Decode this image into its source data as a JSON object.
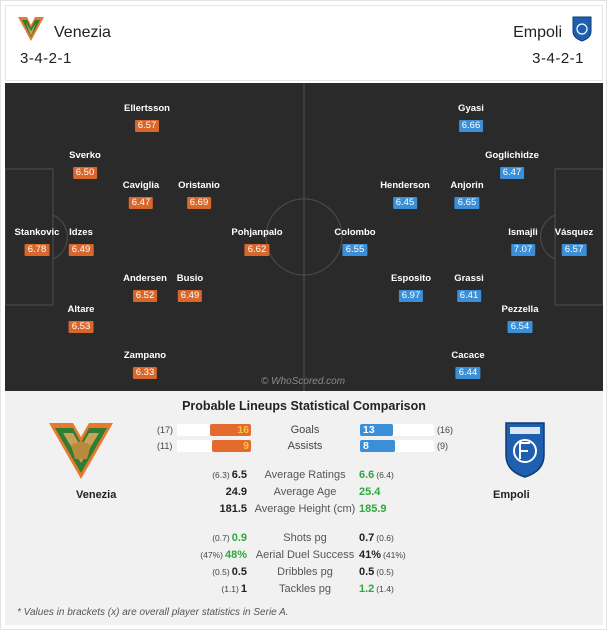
{
  "header": {
    "home": {
      "name": "Venezia",
      "formation": "3-4-2-1"
    },
    "away": {
      "name": "Empoli",
      "formation": "3-4-2-1"
    }
  },
  "colors": {
    "home_rating": "#d9662b",
    "away_rating": "#3a8fd6",
    "pitch": "#2a2a2a",
    "better": "#2eaa3c"
  },
  "pitch": {
    "watermark": "© WhoScored.com",
    "home_players": [
      {
        "name": "Ellertsson",
        "rating": "6.57"
      },
      {
        "name": "Sverko",
        "rating": "6.50"
      },
      {
        "name": "Caviglia",
        "rating": "6.47"
      },
      {
        "name": "Oristanio",
        "rating": "6.69"
      },
      {
        "name": "Stankovic",
        "rating": "6.78"
      },
      {
        "name": "Idzes",
        "rating": "6.49"
      },
      {
        "name": "Pohjanpalo",
        "rating": "6.62"
      },
      {
        "name": "Andersen",
        "rating": "6.52"
      },
      {
        "name": "Busio",
        "rating": "6.49"
      },
      {
        "name": "Altare",
        "rating": "6.53"
      },
      {
        "name": "Zampano",
        "rating": "6.33"
      }
    ],
    "away_players": [
      {
        "name": "Gyasi",
        "rating": "6.66"
      },
      {
        "name": "Goglichidze",
        "rating": "6.47"
      },
      {
        "name": "Henderson",
        "rating": "6.45"
      },
      {
        "name": "Anjorin",
        "rating": "6.65"
      },
      {
        "name": "Colombo",
        "rating": "6.55"
      },
      {
        "name": "Ismajli",
        "rating": "7.07"
      },
      {
        "name": "Vásquez",
        "rating": "6.57"
      },
      {
        "name": "Esposito",
        "rating": "6.97"
      },
      {
        "name": "Grassi",
        "rating": "6.41"
      },
      {
        "name": "Pezzella",
        "rating": "6.54"
      },
      {
        "name": "Cacace",
        "rating": "6.44"
      }
    ]
  },
  "comparison": {
    "title": "Probable Lineups Statistical Comparison",
    "home_name": "Venezia",
    "away_name": "Empoli",
    "goals": {
      "label": "Goals",
      "home": "16",
      "home_overall": "(17)",
      "away": "13",
      "away_overall": "(16)",
      "home_frac": 0.55,
      "away_frac": 0.45
    },
    "assists": {
      "label": "Assists",
      "home": "9",
      "home_overall": "(11)",
      "away": "8",
      "away_overall": "(9)",
      "home_frac": 0.53,
      "away_frac": 0.47
    },
    "stats": [
      {
        "label": "Average Ratings",
        "home": "6.5",
        "home_overall": "(6.3)",
        "away": "6.6",
        "away_overall": "(6.4)",
        "better": "away"
      },
      {
        "label": "Average Age",
        "home": "24.9",
        "home_overall": "",
        "away": "25.4",
        "away_overall": "",
        "better": "away"
      },
      {
        "label": "Average Height (cm)",
        "home": "181.5",
        "home_overall": "",
        "away": "185.9",
        "away_overall": "",
        "better": "away"
      },
      {
        "label": "Shots pg",
        "home": "0.9",
        "home_overall": "(0.7)",
        "away": "0.7",
        "away_overall": "(0.6)",
        "better": "home"
      },
      {
        "label": "Aerial Duel Success",
        "home": "48%",
        "home_overall": "(47%)",
        "away": "41%",
        "away_overall": "(41%)",
        "better": "home"
      },
      {
        "label": "Dribbles pg",
        "home": "0.5",
        "home_overall": "(0.5)",
        "away": "0.5",
        "away_overall": "(0.5)",
        "better": "none"
      },
      {
        "label": "Tackles pg",
        "home": "1",
        "home_overall": "(1.1)",
        "away": "1.2",
        "away_overall": "(1.4)",
        "better": "away"
      }
    ],
    "footnote": "* Values in brackets (x) are overall player statistics in Serie A."
  }
}
